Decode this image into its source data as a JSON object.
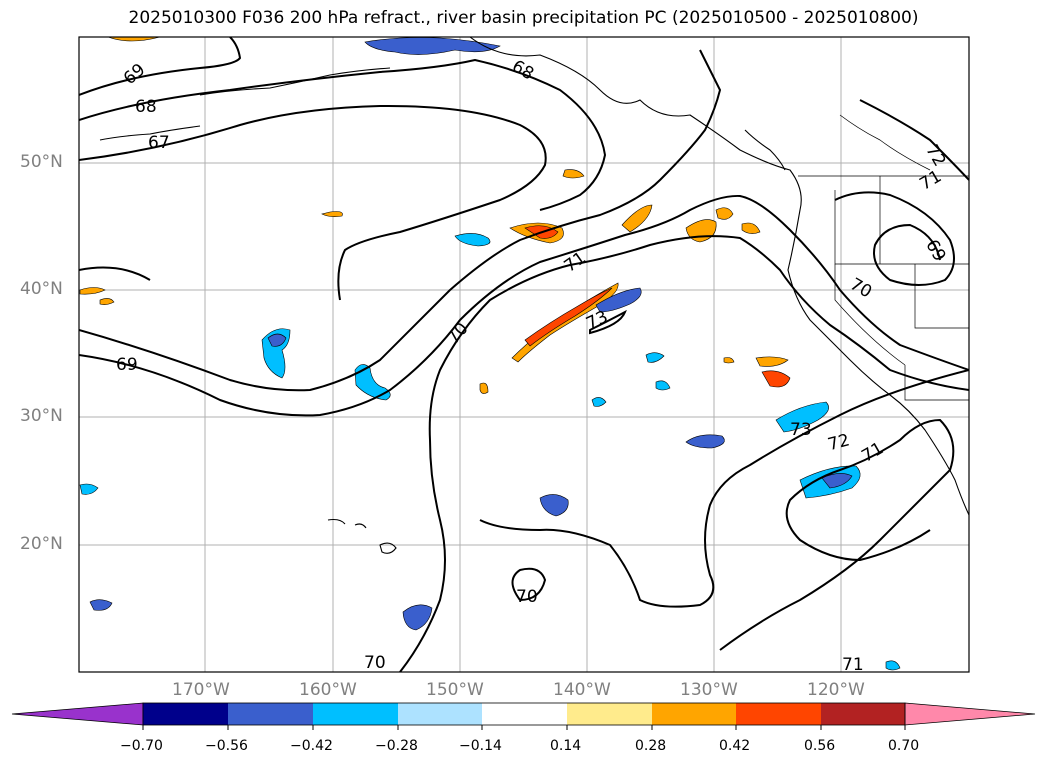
{
  "title": "2025010300 F036 200 hPa refract., river basin precipitation PC (2025010500 - 2025010800)",
  "map": {
    "lat_labels": [
      "50°N",
      "40°N",
      "30°N",
      "20°N"
    ],
    "lon_labels": [
      "170°W",
      "160°W",
      "150°W",
      "140°W",
      "130°W",
      "120°W"
    ],
    "contour_labels": [
      "69",
      "68",
      "67",
      "68",
      "69",
      "70",
      "71",
      "73",
      "70",
      "70",
      "73",
      "72",
      "71",
      "72",
      "71",
      "69",
      "70",
      "71"
    ]
  },
  "colorbar": {
    "colors": [
      "#9932CC",
      "#00008B",
      "#3A5FCD",
      "#00BFFF",
      "#ADE2FF",
      "#FFFFFF",
      "#FFEB8C",
      "#FFA500",
      "#FF4500",
      "#B22222",
      "#FF88AA"
    ],
    "ticks": [
      "−0.70",
      "−0.56",
      "−0.42",
      "−0.28",
      "−0.14",
      "0.14",
      "0.28",
      "0.42",
      "0.56",
      "0.70"
    ]
  }
}
